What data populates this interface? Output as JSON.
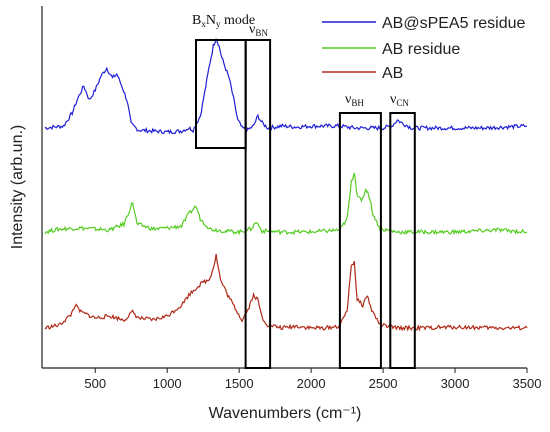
{
  "chart_data": {
    "type": "line",
    "xlabel": "Wavenumbers (cm⁻¹)",
    "ylabel": "Intensity (arb.un.)",
    "xlim": [
      130,
      3500
    ],
    "xticks": [
      500,
      1000,
      1500,
      2000,
      2500,
      3000,
      3500
    ],
    "xtick_labels": [
      "500",
      "1000",
      "1500",
      "2000",
      "2500",
      "3000",
      "3500"
    ],
    "yticks_shown": false,
    "legend_position": "top-right",
    "series": [
      {
        "name": "AB@sPEA5 residue",
        "color": "#1f1fd6",
        "offset": 2.0,
        "points": [
          [
            150,
            0.2
          ],
          [
            280,
            0.22
          ],
          [
            340,
            0.35
          ],
          [
            380,
            0.5
          ],
          [
            420,
            0.62
          ],
          [
            460,
            0.48
          ],
          [
            500,
            0.58
          ],
          [
            540,
            0.72
          ],
          [
            580,
            0.8
          ],
          [
            620,
            0.7
          ],
          [
            650,
            0.74
          ],
          [
            690,
            0.6
          ],
          [
            720,
            0.48
          ],
          [
            750,
            0.24
          ],
          [
            800,
            0.18
          ],
          [
            900,
            0.17
          ],
          [
            1000,
            0.16
          ],
          [
            1100,
            0.17
          ],
          [
            1150,
            0.2
          ],
          [
            1180,
            0.18
          ],
          [
            1230,
            0.32
          ],
          [
            1260,
            0.55
          ],
          [
            1290,
            0.8
          ],
          [
            1320,
            1.02
          ],
          [
            1340,
            1.1
          ],
          [
            1360,
            1.02
          ],
          [
            1380,
            0.9
          ],
          [
            1400,
            0.82
          ],
          [
            1430,
            0.7
          ],
          [
            1460,
            0.5
          ],
          [
            1490,
            0.28
          ],
          [
            1520,
            0.2
          ],
          [
            1560,
            0.18
          ],
          [
            1600,
            0.22
          ],
          [
            1630,
            0.32
          ],
          [
            1660,
            0.25
          ],
          [
            1700,
            0.2
          ],
          [
            1800,
            0.22
          ],
          [
            1900,
            0.21
          ],
          [
            2000,
            0.22
          ],
          [
            2100,
            0.22
          ],
          [
            2200,
            0.22
          ],
          [
            2300,
            0.2
          ],
          [
            2400,
            0.2
          ],
          [
            2500,
            0.2
          ],
          [
            2560,
            0.22
          ],
          [
            2600,
            0.28
          ],
          [
            2630,
            0.25
          ],
          [
            2700,
            0.2
          ],
          [
            3000,
            0.2
          ],
          [
            3200,
            0.2
          ],
          [
            3500,
            0.22
          ]
        ]
      },
      {
        "name": "AB residue",
        "color": "#55cc22",
        "offset": 1.0,
        "points": [
          [
            150,
            0.12
          ],
          [
            250,
            0.15
          ],
          [
            400,
            0.16
          ],
          [
            600,
            0.14
          ],
          [
            700,
            0.2
          ],
          [
            760,
            0.42
          ],
          [
            790,
            0.2
          ],
          [
            900,
            0.15
          ],
          [
            1000,
            0.16
          ],
          [
            1100,
            0.18
          ],
          [
            1150,
            0.3
          ],
          [
            1200,
            0.38
          ],
          [
            1230,
            0.25
          ],
          [
            1300,
            0.15
          ],
          [
            1400,
            0.13
          ],
          [
            1500,
            0.12
          ],
          [
            1580,
            0.15
          ],
          [
            1620,
            0.22
          ],
          [
            1660,
            0.13
          ],
          [
            1800,
            0.12
          ],
          [
            2000,
            0.12
          ],
          [
            2200,
            0.14
          ],
          [
            2250,
            0.25
          ],
          [
            2280,
            0.62
          ],
          [
            2300,
            0.72
          ],
          [
            2320,
            0.5
          ],
          [
            2350,
            0.42
          ],
          [
            2380,
            0.55
          ],
          [
            2400,
            0.5
          ],
          [
            2430,
            0.3
          ],
          [
            2480,
            0.15
          ],
          [
            2600,
            0.12
          ],
          [
            2800,
            0.12
          ],
          [
            3000,
            0.12
          ],
          [
            3300,
            0.14
          ],
          [
            3500,
            0.12
          ]
        ]
      },
      {
        "name": "AB",
        "color": "#b02a18",
        "offset": 0.0,
        "points": [
          [
            150,
            0.12
          ],
          [
            250,
            0.15
          ],
          [
            330,
            0.25
          ],
          [
            360,
            0.35
          ],
          [
            400,
            0.28
          ],
          [
            500,
            0.22
          ],
          [
            600,
            0.24
          ],
          [
            700,
            0.2
          ],
          [
            760,
            0.28
          ],
          [
            800,
            0.22
          ],
          [
            900,
            0.2
          ],
          [
            1000,
            0.24
          ],
          [
            1100,
            0.35
          ],
          [
            1150,
            0.45
          ],
          [
            1200,
            0.52
          ],
          [
            1250,
            0.58
          ],
          [
            1290,
            0.6
          ],
          [
            1320,
            0.72
          ],
          [
            1340,
            0.85
          ],
          [
            1370,
            0.6
          ],
          [
            1420,
            0.45
          ],
          [
            1480,
            0.3
          ],
          [
            1520,
            0.2
          ],
          [
            1560,
            0.3
          ],
          [
            1600,
            0.45
          ],
          [
            1630,
            0.4
          ],
          [
            1660,
            0.22
          ],
          [
            1700,
            0.15
          ],
          [
            1800,
            0.12
          ],
          [
            1900,
            0.14
          ],
          [
            2000,
            0.12
          ],
          [
            2100,
            0.12
          ],
          [
            2200,
            0.14
          ],
          [
            2250,
            0.3
          ],
          [
            2280,
            0.75
          ],
          [
            2300,
            0.78
          ],
          [
            2320,
            0.4
          ],
          [
            2360,
            0.35
          ],
          [
            2390,
            0.45
          ],
          [
            2420,
            0.3
          ],
          [
            2480,
            0.15
          ],
          [
            2600,
            0.12
          ],
          [
            2800,
            0.12
          ],
          [
            3000,
            0.13
          ],
          [
            3300,
            0.12
          ],
          [
            3500,
            0.12
          ]
        ]
      }
    ],
    "annotations": [
      {
        "main": "B",
        "sub1": "x",
        "mid": "N",
        "sub2": "y",
        "tail": " mode"
      },
      {
        "main": "ν",
        "sub1": "BN"
      },
      {
        "main": "ν",
        "sub1": "BH"
      },
      {
        "main": "ν",
        "sub1": "CN"
      }
    ]
  }
}
